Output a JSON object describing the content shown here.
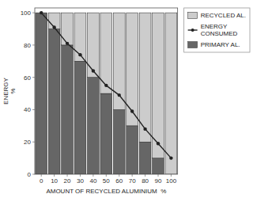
{
  "chart_data": {
    "type": "bar",
    "stacked": true,
    "xlabel": "AMOUNT OF RECYCLED ALUMINIUM  %",
    "ylabel": "ENERGY\n%",
    "x": [
      0,
      10,
      20,
      30,
      40,
      50,
      60,
      70,
      80,
      90,
      100
    ],
    "series": [
      {
        "name": "PRIMARY AL.",
        "color": "#666666",
        "values": [
          100,
          90,
          80,
          70,
          60,
          50,
          40,
          30,
          20,
          10,
          0
        ]
      },
      {
        "name": "RECYCLED AL.",
        "color": "#cccccc",
        "values": [
          0,
          10,
          20,
          30,
          40,
          50,
          60,
          70,
          80,
          90,
          100
        ]
      },
      {
        "name": "ENERGY\nCONSUMED",
        "type": "line",
        "color": "#222222",
        "marker": "circle",
        "values": [
          100,
          91,
          81,
          74,
          64,
          55,
          49,
          39,
          28,
          19,
          10
        ]
      }
    ],
    "xlim": [
      -5,
      105
    ],
    "ylim": [
      0,
      103
    ],
    "xticks": [
      0,
      10,
      20,
      30,
      40,
      50,
      60,
      70,
      80,
      90,
      100
    ],
    "yticks": [
      0,
      20,
      40,
      60,
      80,
      100
    ],
    "legend": "right"
  }
}
